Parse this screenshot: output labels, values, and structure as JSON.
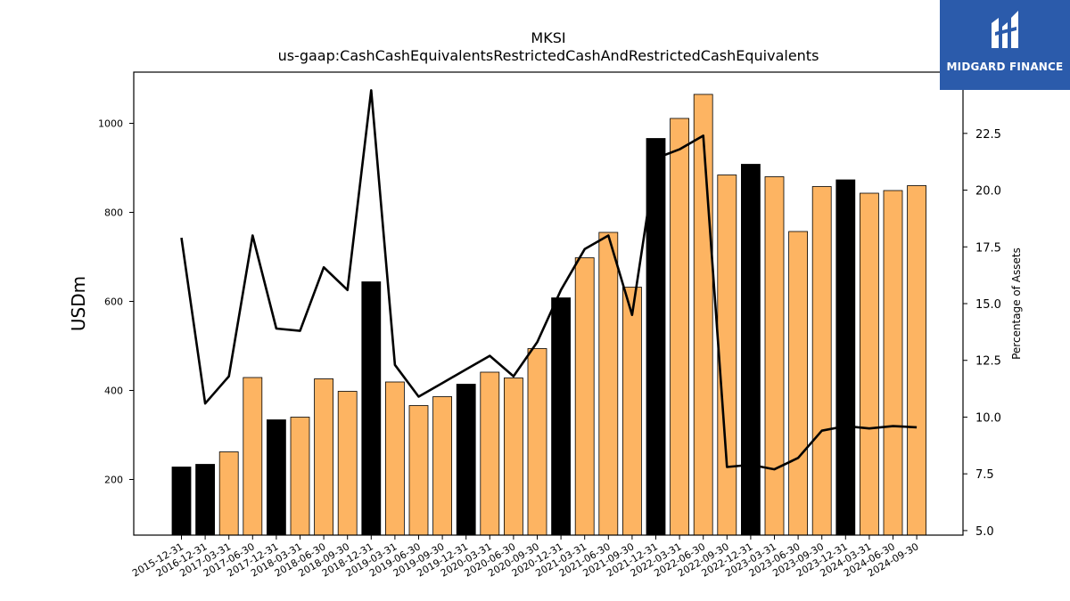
{
  "chart_data": {
    "type": "bar",
    "title": "MKSI",
    "subtitle": "us-gaap:CashCashEquivalentsRestrictedCashAndRestrictedCashEquivalents",
    "ylabel": "USDm",
    "y2label": "Percentage of Assets",
    "ylim": [
      75,
      1115
    ],
    "y2lim": [
      4.8,
      25.2
    ],
    "yticks": [
      200,
      400,
      600,
      800,
      1000
    ],
    "y2ticks": [
      5.0,
      7.5,
      10.0,
      12.5,
      15.0,
      17.5,
      20.0,
      22.5
    ],
    "categories": [
      "2015-12-31",
      "2016-12-31",
      "2017-03-31",
      "2017-06-30",
      "2017-12-31",
      "2018-03-31",
      "2018-06-30",
      "2018-09-30",
      "2018-12-31",
      "2019-03-31",
      "2019-06-30",
      "2019-09-30",
      "2019-12-31",
      "2020-03-31",
      "2020-06-30",
      "2020-09-30",
      "2020-12-31",
      "2021-03-31",
      "2021-06-30",
      "2021-09-30",
      "2021-12-31",
      "2022-03-31",
      "2022-06-30",
      "2022-09-30",
      "2022-12-31",
      "2023-03-31",
      "2023-06-30",
      "2023-09-30",
      "2023-12-31",
      "2024-03-31",
      "2024-06-30",
      "2024-09-30"
    ],
    "series": [
      {
        "type": "bar",
        "axis": "left",
        "values": [
          228,
          234,
          262,
          429,
          334,
          340,
          426,
          398,
          644,
          419,
          366,
          386,
          414,
          441,
          428,
          494,
          608,
          698,
          755,
          632,
          966,
          1011,
          1065,
          884,
          908,
          880,
          757,
          858,
          873,
          843,
          849,
          860
        ],
        "colors": [
          "#000000",
          "#000000",
          "#fdb462",
          "#fdb462",
          "#000000",
          "#fdb462",
          "#fdb462",
          "#fdb462",
          "#000000",
          "#fdb462",
          "#fdb462",
          "#fdb462",
          "#000000",
          "#fdb462",
          "#fdb462",
          "#fdb462",
          "#000000",
          "#fdb462",
          "#fdb462",
          "#fdb462",
          "#000000",
          "#fdb462",
          "#fdb462",
          "#fdb462",
          "#000000",
          "#fdb462",
          "#fdb462",
          "#fdb462",
          "#000000",
          "#fdb462",
          "#fdb462",
          "#fdb462"
        ]
      },
      {
        "type": "line",
        "axis": "right",
        "color": "#000000",
        "values": [
          17.9,
          10.6,
          11.8,
          18.0,
          13.9,
          13.8,
          16.6,
          15.6,
          24.4,
          12.3,
          10.9,
          11.5,
          12.1,
          12.7,
          11.8,
          13.3,
          15.6,
          17.4,
          18.0,
          14.5,
          21.4,
          21.8,
          22.4,
          7.8,
          7.9,
          7.7,
          8.2,
          9.4,
          9.6,
          9.5,
          9.6,
          9.55
        ]
      }
    ],
    "grid": false,
    "legend": "none"
  },
  "logo": {
    "text": "MIDGARD FINANCE",
    "icon": "midgard-logo-icon",
    "color": "#2b5bab"
  }
}
